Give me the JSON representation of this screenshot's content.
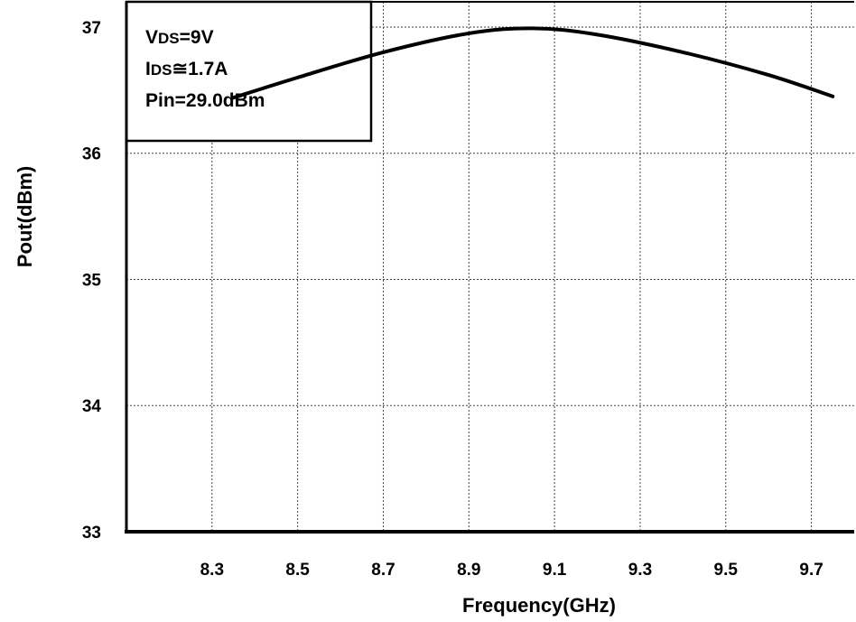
{
  "chart_data": {
    "type": "line",
    "xlabel": "Frequency(GHz)",
    "ylabel": "Pout(dBm)",
    "xlim": [
      8.1,
      9.8
    ],
    "ylim": [
      33,
      37.2
    ],
    "x_ticks": [
      "8.3",
      "8.5",
      "8.7",
      "8.9",
      "9.1",
      "9.3",
      "9.5",
      "9.7"
    ],
    "y_ticks": [
      "33",
      "34",
      "35",
      "36",
      "37"
    ],
    "grid": true,
    "legend_placement": "top-left",
    "annotation": {
      "lines": [
        {
          "prefix": "V",
          "sub": "DS",
          "rest": "=9V"
        },
        {
          "prefix": "I",
          "sub": "DS",
          "rest": "≅1.7A"
        },
        {
          "prefix": "",
          "sub": "",
          "rest": "Pin=29.0dBm"
        }
      ]
    },
    "series": [
      {
        "x": [
          8.35,
          8.5,
          8.7,
          8.9,
          9.05,
          9.2,
          9.4,
          9.6,
          9.75
        ],
        "values": [
          36.44,
          36.6,
          36.8,
          36.95,
          36.99,
          36.94,
          36.8,
          36.62,
          36.45
        ]
      }
    ],
    "color": "#000000"
  }
}
